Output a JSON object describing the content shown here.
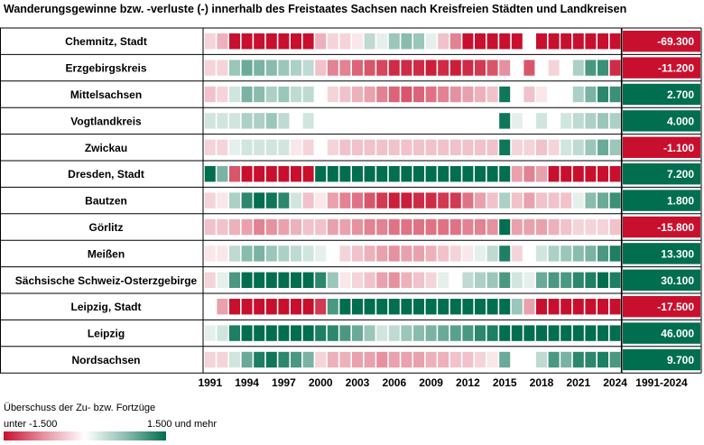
{
  "title": "Wanderungsgewinne bzw. -verluste (-) innerhalb des Freistaates Sachsen nach Kreisfreien Städten und Landkreisen",
  "legend": {
    "title": "Überschuss der Zu- bzw. Fortzüge",
    "min_label": "unter -1.500",
    "max_label": "1.500 und mehr",
    "colors": {
      "negative": "#c8102e",
      "zero": "#ffffff",
      "positive": "#006e4f"
    }
  },
  "chart_data": {
    "type": "heatmap",
    "years": [
      1991,
      1992,
      1993,
      1994,
      1995,
      1996,
      1997,
      1998,
      1999,
      2000,
      2001,
      2002,
      2003,
      2004,
      2005,
      2006,
      2007,
      2008,
      2009,
      2010,
      2011,
      2012,
      2013,
      2014,
      2015,
      2016,
      2017,
      2018,
      2019,
      2020,
      2021,
      2022,
      2023,
      2024
    ],
    "x_tick_labels": [
      "1991",
      "1994",
      "1997",
      "2000",
      "2003",
      "2006",
      "2009",
      "2012",
      "2015",
      "2018",
      "2021",
      "2024"
    ],
    "total_header": "1991-2024",
    "color_scale": {
      "min": -1500,
      "max": 1500
    },
    "rows": [
      {
        "name": "Chemnitz, Stadt",
        "total": "-69.300",
        "values": [
          -200,
          -400,
          -1500,
          -1500,
          -1500,
          -1500,
          -1500,
          -1500,
          -1500,
          -400,
          -200,
          -200,
          -100,
          300,
          100,
          500,
          600,
          500,
          100,
          -300,
          -700,
          -1500,
          -1500,
          -1500,
          -1500,
          -1500,
          0,
          -1500,
          -1500,
          -1500,
          -1500,
          -1500,
          -1500,
          -1500
        ]
      },
      {
        "name": "Erzgebirgskreis",
        "total": "-11.200",
        "values": [
          -200,
          -200,
          500,
          800,
          700,
          600,
          500,
          400,
          300,
          -300,
          -700,
          -700,
          -900,
          -1000,
          -1100,
          -1300,
          -1300,
          -1300,
          -1400,
          -1300,
          -1400,
          -1300,
          -1200,
          -1000,
          -600,
          0,
          -1000,
          0,
          -200,
          0,
          400,
          1000,
          1100,
          -1300
        ]
      },
      {
        "name": "Mittelsachsen",
        "total": "2.700",
        "values": [
          -300,
          -200,
          200,
          700,
          600,
          400,
          500,
          300,
          300,
          0,
          -200,
          -300,
          -400,
          -500,
          -700,
          -900,
          -1000,
          -900,
          -800,
          -700,
          -600,
          -500,
          -400,
          -300,
          1400,
          0,
          -300,
          -100,
          0,
          0,
          400,
          700,
          1200,
          1100
        ]
      },
      {
        "name": "Vogtlandkreis",
        "total": "4.000",
        "values": [
          200,
          200,
          200,
          400,
          400,
          500,
          300,
          0,
          200,
          0,
          0,
          0,
          0,
          0,
          0,
          0,
          0,
          0,
          0,
          0,
          0,
          0,
          0,
          0,
          1400,
          100,
          0,
          200,
          0,
          200,
          300,
          400,
          500,
          400
        ]
      },
      {
        "name": "Zwickau",
        "total": "-1.100",
        "values": [
          -200,
          -200,
          100,
          200,
          200,
          200,
          200,
          -100,
          -200,
          0,
          -200,
          -300,
          -300,
          -300,
          -300,
          -300,
          -300,
          -300,
          -300,
          -300,
          -300,
          -300,
          -300,
          -300,
          1400,
          -200,
          -200,
          -300,
          -200,
          200,
          300,
          500,
          800,
          500
        ]
      },
      {
        "name": "Dresden, Stadt",
        "total": "7.200",
        "values": [
          1500,
          700,
          -1000,
          -1500,
          -1500,
          -1500,
          -1500,
          -1500,
          -1500,
          1500,
          1500,
          1500,
          1500,
          1500,
          1500,
          1500,
          1500,
          1500,
          1500,
          1500,
          1500,
          1500,
          1500,
          1500,
          1500,
          -500,
          -700,
          -500,
          -1500,
          -1500,
          -1500,
          -1500,
          -1500,
          -1500
        ]
      },
      {
        "name": "Bautzen",
        "total": "1.800",
        "values": [
          -200,
          -100,
          400,
          1200,
          1500,
          1400,
          1200,
          200,
          -300,
          -100,
          -500,
          -700,
          -800,
          -1000,
          -1200,
          -1400,
          -1400,
          -1300,
          -1300,
          -1200,
          -1200,
          -800,
          -500,
          -300,
          400,
          -300,
          -500,
          -300,
          -300,
          -300,
          100,
          600,
          800,
          1100
        ]
      },
      {
        "name": "Görlitz",
        "total": "-15.800",
        "values": [
          -300,
          -300,
          -400,
          -500,
          -700,
          -600,
          -500,
          -400,
          -300,
          -300,
          -500,
          -500,
          -600,
          -700,
          -700,
          -800,
          -800,
          -800,
          -800,
          -800,
          -800,
          -700,
          -700,
          -600,
          1500,
          -500,
          -500,
          -500,
          -400,
          -300,
          -200,
          -200,
          -200,
          -300
        ]
      },
      {
        "name": "Meißen",
        "total": "13.300",
        "values": [
          -100,
          -100,
          300,
          600,
          700,
          500,
          400,
          300,
          200,
          100,
          0,
          -200,
          -300,
          -400,
          -500,
          -600,
          -500,
          -500,
          -400,
          -300,
          -200,
          -100,
          100,
          300,
          1300,
          -200,
          0,
          200,
          400,
          500,
          600,
          700,
          1000,
          1300
        ]
      },
      {
        "name": "Sächsische Schweiz-Osterzgebirge",
        "total": "30.100",
        "values": [
          -200,
          100,
          1000,
          1500,
          1500,
          1500,
          1500,
          1500,
          1500,
          1200,
          500,
          -100,
          -200,
          -300,
          -500,
          -600,
          -400,
          -300,
          -200,
          100,
          0,
          300,
          400,
          500,
          1000,
          200,
          100,
          800,
          1000,
          1000,
          1200,
          1300,
          1500,
          1300
        ]
      },
      {
        "name": "Leipzig, Stadt",
        "total": "-17.500",
        "values": [
          0,
          -500,
          -1500,
          -1500,
          -1500,
          -1500,
          -1500,
          -1500,
          -1500,
          -1200,
          1000,
          1500,
          1500,
          1500,
          1500,
          1500,
          1500,
          1500,
          1500,
          1500,
          1500,
          1500,
          1500,
          1500,
          1500,
          500,
          -500,
          -1500,
          -1500,
          -1500,
          -1500,
          -1500,
          -1500,
          -1500
        ]
      },
      {
        "name": "Leipzig",
        "total": "46.000",
        "values": [
          100,
          200,
          1300,
          1500,
          1500,
          1500,
          1500,
          1500,
          1500,
          1300,
          1200,
          1000,
          800,
          500,
          200,
          300,
          500,
          600,
          700,
          800,
          900,
          1000,
          1200,
          1300,
          1500,
          1500,
          1500,
          1500,
          1500,
          1500,
          1500,
          1500,
          1500,
          1500
        ]
      },
      {
        "name": "Nordsachsen",
        "total": "9.700",
        "values": [
          -200,
          -200,
          200,
          800,
          1300,
          1400,
          1200,
          1000,
          700,
          -200,
          -400,
          -400,
          -500,
          -500,
          -600,
          -500,
          -500,
          -500,
          -400,
          -400,
          -300,
          -300,
          -200,
          -100,
          800,
          0,
          0,
          300,
          1000,
          700,
          1200,
          1200,
          1300,
          1000
        ]
      }
    ],
    "total_values": [
      -69300,
      -11200,
      2700,
      4000,
      -1100,
      7200,
      1800,
      -15800,
      13300,
      30100,
      -17500,
      46000,
      9700
    ]
  }
}
